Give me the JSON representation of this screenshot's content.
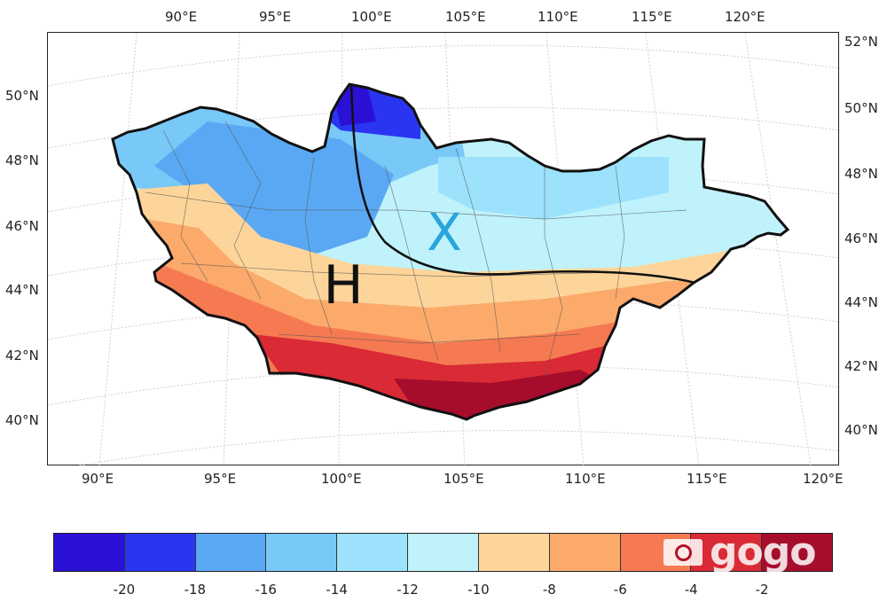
{
  "map": {
    "top_lon_labels": [
      "90°E",
      "95°E",
      "100°E",
      "105°E",
      "110°E",
      "115°E",
      "120°E"
    ],
    "bottom_lon_labels": [
      "90°E",
      "95°E",
      "100°E",
      "105°E",
      "110°E",
      "115°E",
      "120°E"
    ],
    "left_lat_labels": [
      "50°N",
      "48°N",
      "46°N",
      "44°N",
      "42°N",
      "40°N"
    ],
    "right_lat_labels": [
      "52°N",
      "50°N",
      "48°N",
      "46°N",
      "44°N",
      "42°N",
      "40°N"
    ],
    "region_markers": [
      {
        "text": "H",
        "color": "#111111"
      },
      {
        "text": "X",
        "color": "#29a6dc"
      }
    ]
  },
  "colorbar": {
    "colors": [
      "#2b10d6",
      "#2a35f2",
      "#5aa8f3",
      "#78c8f8",
      "#9ce2fc",
      "#bff2fb",
      "#fdd59a",
      "#fbaa6b",
      "#f57a52",
      "#d92a35",
      "#a60d2c"
    ],
    "ticks": [
      "-20",
      "-18",
      "-16",
      "-14",
      "-12",
      "-10",
      "-8",
      "-6",
      "-4",
      "-2"
    ]
  },
  "watermark": {
    "text": "gogo"
  }
}
